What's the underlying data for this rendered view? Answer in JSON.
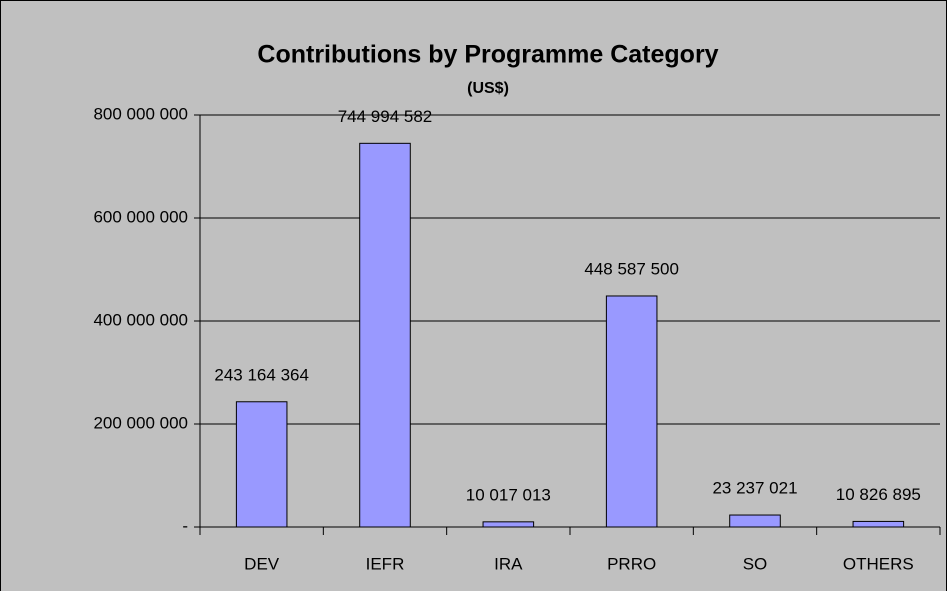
{
  "chart_data": {
    "type": "bar",
    "title": "Contributions by Programme Category",
    "subtitle": "(US$)",
    "categories": [
      "DEV",
      "IEFR",
      "IRA",
      "PRRO",
      "SO",
      "OTHERS"
    ],
    "values": [
      243164364,
      744994582,
      10017013,
      448587500,
      23237021,
      10826895
    ],
    "value_labels": [
      "243 164 364",
      "744 994 582",
      "10 017 013",
      "448 587 500",
      "23 237 021",
      "10 826 895"
    ],
    "color": "#9999ff",
    "ylim": [
      0,
      800000000
    ],
    "yticks": [
      {
        "value": 0,
        "label": "-"
      },
      {
        "value": 200000000,
        "label": "200 000 000"
      },
      {
        "value": 400000000,
        "label": "400 000 000"
      },
      {
        "value": 600000000,
        "label": "600 000 000"
      },
      {
        "value": 800000000,
        "label": "800 000 000"
      }
    ],
    "grid": true
  }
}
